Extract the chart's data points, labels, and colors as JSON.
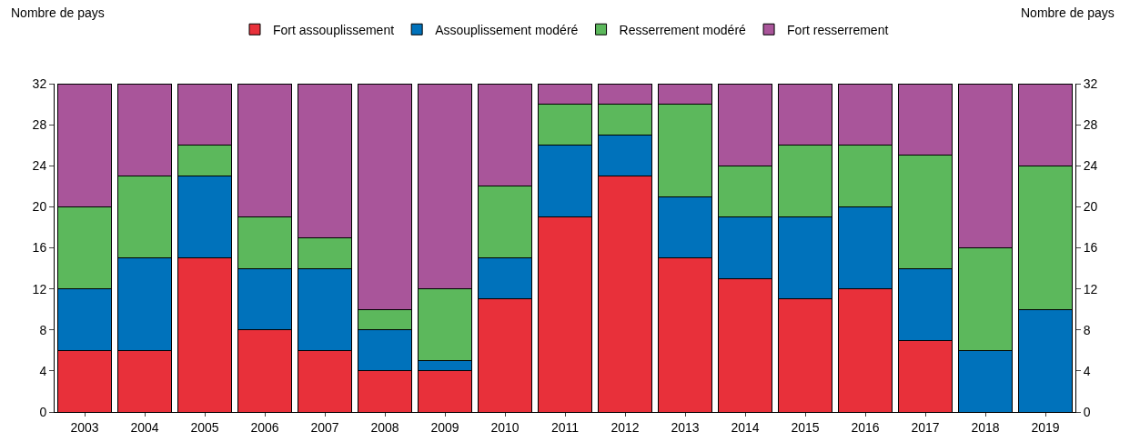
{
  "chart_data": {
    "type": "bar",
    "stacked": true,
    "annotations": [
      "Nombre de pays",
      "Nombre de pays"
    ],
    "categories": [
      "2003",
      "2004",
      "2005",
      "2006",
      "2007",
      "2008",
      "2009",
      "2010",
      "2011",
      "2012",
      "2013",
      "2014",
      "2015",
      "2016",
      "2017",
      "2018",
      "2019"
    ],
    "series": [
      {
        "name": "Fort assouplissement",
        "color": "#e8303a",
        "values": [
          6,
          6,
          15,
          8,
          6,
          4,
          4,
          11,
          19,
          23,
          15,
          13,
          11,
          12,
          7,
          0,
          0
        ]
      },
      {
        "name": "Assouplissement modéré",
        "color": "#0072bb",
        "values": [
          6,
          9,
          8,
          6,
          8,
          4,
          1,
          4,
          7,
          4,
          6,
          6,
          8,
          8,
          7,
          6,
          10
        ]
      },
      {
        "name": "Resserrement modéré",
        "color": "#5cb85c",
        "values": [
          8,
          8,
          3,
          5,
          3,
          2,
          7,
          7,
          4,
          3,
          9,
          5,
          7,
          6,
          11,
          10,
          14
        ]
      },
      {
        "name": "Fort resserrement",
        "color": "#a9559a",
        "values": [
          12,
          9,
          6,
          13,
          15,
          22,
          20,
          10,
          2,
          2,
          2,
          8,
          6,
          6,
          7,
          16,
          8
        ]
      }
    ],
    "ylim": [
      0,
      32
    ],
    "yticks": [
      0,
      4,
      8,
      12,
      16,
      20,
      24,
      28,
      32
    ],
    "y2lim": [
      0,
      32
    ],
    "y2ticks": [
      0,
      4,
      8,
      12,
      16,
      20,
      24,
      28,
      32
    ],
    "grid": false,
    "legend": "top"
  }
}
